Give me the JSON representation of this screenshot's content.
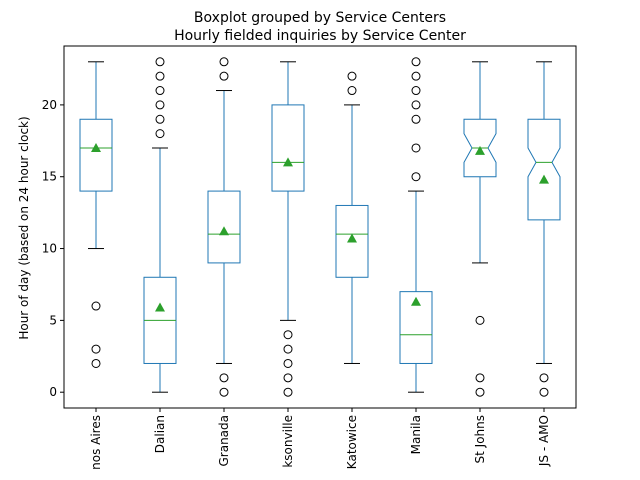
{
  "chart_data": {
    "type": "box",
    "title": "Boxplot grouped by Service Centers",
    "subtitle": "Hourly fielded inquiries by Service Center",
    "xlabel": "",
    "ylabel": "Hour of day (based on 24 hour clock)",
    "ylim": [
      -1.1,
      24.1
    ],
    "yticks": [
      0,
      5,
      10,
      15,
      20
    ],
    "grid": false,
    "colors": {
      "box": "#1f77b4",
      "median": "#2ca02c",
      "mean": "#2ca02c",
      "whisker_cap": "#000000",
      "flier": "#000000"
    },
    "categories": [
      {
        "label": "nos Aires",
        "notched": false,
        "q1": 14,
        "median": 17,
        "q3": 19,
        "whislo": 10,
        "whishi": 23,
        "mean": 17.0,
        "fliers": [
          2,
          3,
          6
        ]
      },
      {
        "label": "Dalian",
        "notched": false,
        "q1": 2,
        "median": 5,
        "q3": 8,
        "whislo": 0,
        "whishi": 17,
        "mean": 5.9,
        "fliers": [
          18,
          19,
          20,
          21,
          22,
          23
        ]
      },
      {
        "label": "Granada",
        "notched": false,
        "q1": 9,
        "median": 11,
        "q3": 14,
        "whislo": 2,
        "whishi": 21,
        "mean": 11.2,
        "fliers": [
          0,
          1,
          22,
          23
        ]
      },
      {
        "label": "ksonville",
        "notched": false,
        "q1": 14,
        "median": 16,
        "q3": 20,
        "whislo": 5,
        "whishi": 23,
        "mean": 16.0,
        "fliers": [
          0,
          1,
          2,
          3,
          4
        ]
      },
      {
        "label": "Katowice",
        "notched": false,
        "q1": 8,
        "median": 11,
        "q3": 13,
        "whislo": 2,
        "whishi": 20,
        "mean": 10.7,
        "fliers": [
          21,
          22
        ]
      },
      {
        "label": "Manila",
        "notched": false,
        "q1": 2,
        "median": 4,
        "q3": 7,
        "whislo": 0,
        "whishi": 14,
        "mean": 6.3,
        "fliers": [
          15,
          17,
          19,
          20,
          21,
          22,
          23
        ]
      },
      {
        "label": "St Johns",
        "notched": true,
        "q1": 15,
        "median": 17,
        "q3": 19,
        "whislo": 9,
        "whishi": 23,
        "mean": 16.8,
        "fliers": [
          0,
          1,
          5
        ]
      },
      {
        "label": "JS - AMO",
        "notched": true,
        "q1": 12,
        "median": 16,
        "q3": 19,
        "whislo": 2,
        "whishi": 23,
        "mean": 14.8,
        "fliers": [
          0,
          1
        ]
      }
    ]
  }
}
